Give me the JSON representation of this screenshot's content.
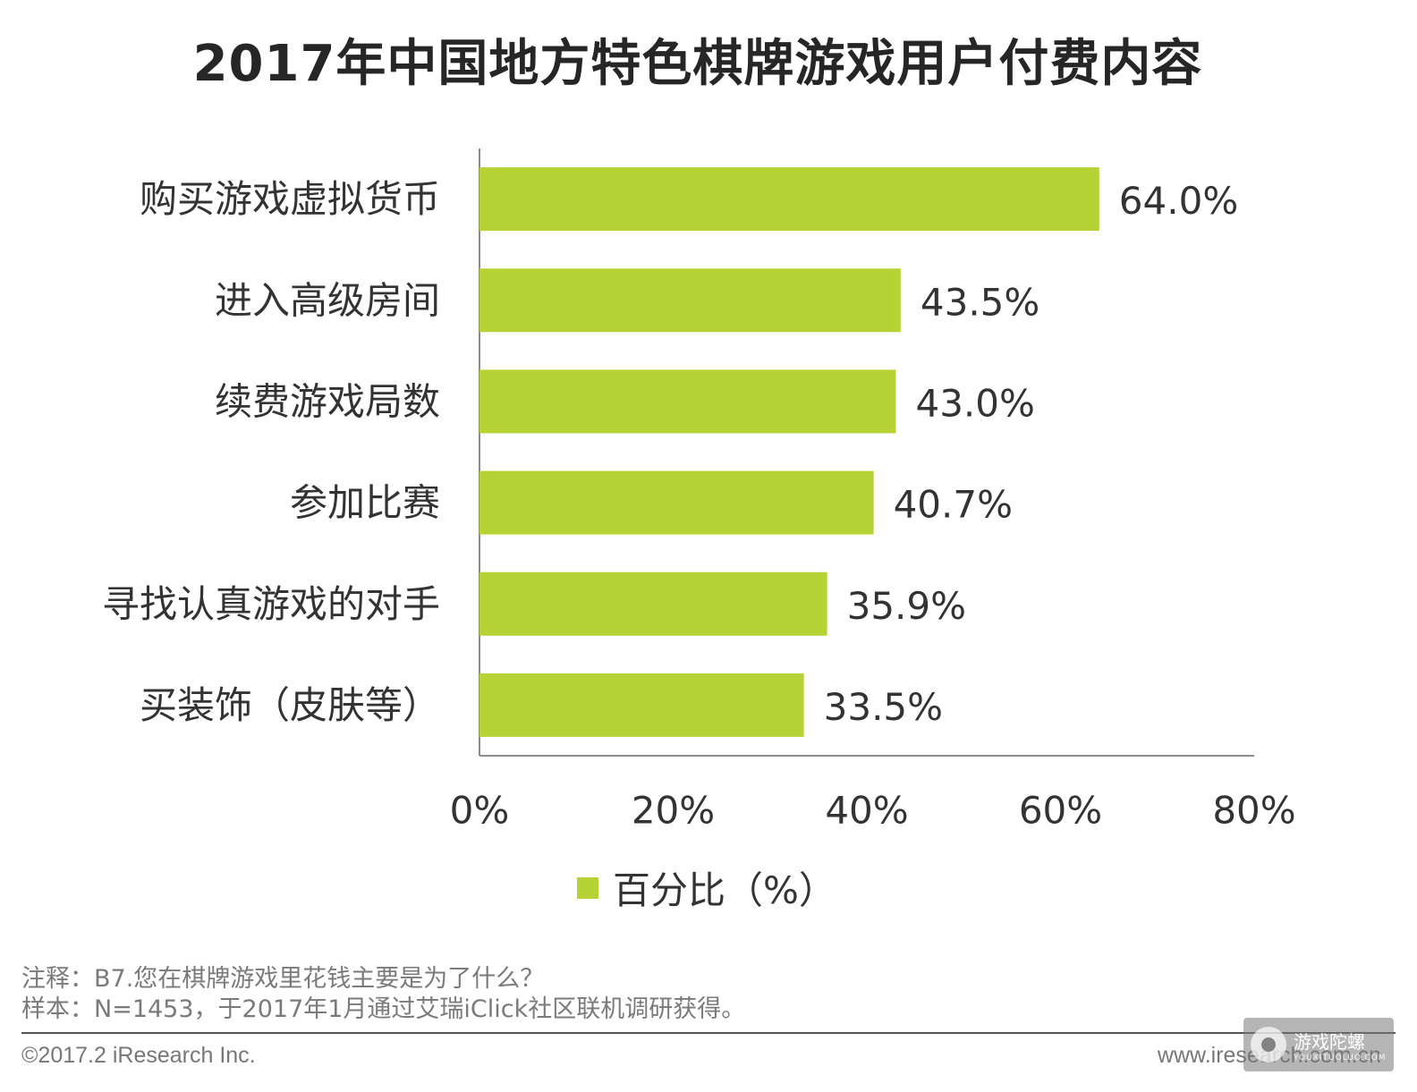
{
  "chart_data": {
    "type": "bar",
    "orientation": "horizontal",
    "title": "2017年中国地方特色棋牌游戏用户付费内容",
    "categories": [
      "购买游戏虚拟货币",
      "进入高级房间",
      "续费游戏局数",
      "参加比赛",
      "寻找认真游戏的对手",
      "买装饰（皮肤等）"
    ],
    "series": [
      {
        "name": "百分比（%）",
        "values": [
          64.0,
          43.5,
          43.0,
          40.7,
          35.9,
          33.5
        ],
        "color": "#b5d334"
      }
    ],
    "data_labels": [
      "64.0%",
      "43.5%",
      "43.0%",
      "40.7%",
      "35.9%",
      "33.5%"
    ],
    "xlim": [
      0,
      80
    ],
    "x_ticks": [
      "0%",
      "20%",
      "40%",
      "60%",
      "80%"
    ],
    "grid": false,
    "legend_position": "bottom"
  },
  "footnotes": {
    "note": "注释：B7.您在棋牌游戏里花钱主要是为了什么？",
    "sample": "样本：N=1453，于2017年1月通过艾瑞iClick社区联机调研获得。"
  },
  "footer": {
    "copyright": "©2017.2 iResearch Inc.",
    "website": "www.iresearch.com.cn"
  },
  "watermark": {
    "text": "游戏陀螺",
    "sub": "YOUXITUOLUO.COM"
  }
}
